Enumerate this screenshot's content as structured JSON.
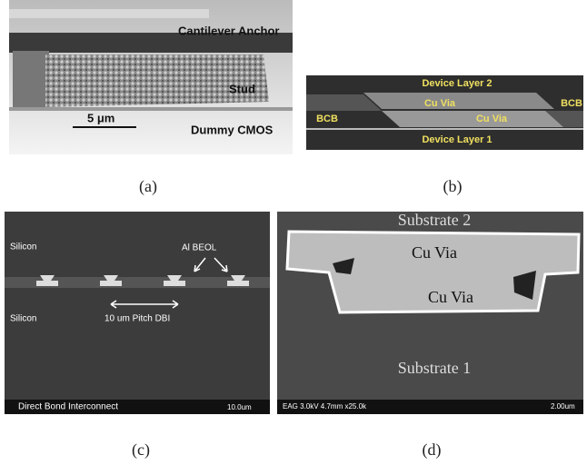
{
  "panels": [
    {
      "caption": "(a)",
      "labels": [
        "Cantilever Anchor",
        "Stud",
        "5 μm",
        "Dummy CMOS"
      ]
    },
    {
      "caption": "(b)",
      "labels": [
        "Device Layer 2",
        "Cu Via",
        "BCB",
        "BCB",
        "Cu Via",
        "Device Layer 1"
      ]
    },
    {
      "caption": "(c)",
      "labels": [
        "Silicon",
        "Al BEOL",
        "Silicon",
        "10 um Pitch DBI",
        "Direct Bond Interconnect",
        "10.0um"
      ]
    },
    {
      "caption": "(d)",
      "labels": [
        "Substrate 2",
        "Cu Via",
        "Cu Via",
        "Substrate 1",
        "EAG 3.0kV 4.7mm x25.0k",
        "2.00um"
      ]
    }
  ]
}
